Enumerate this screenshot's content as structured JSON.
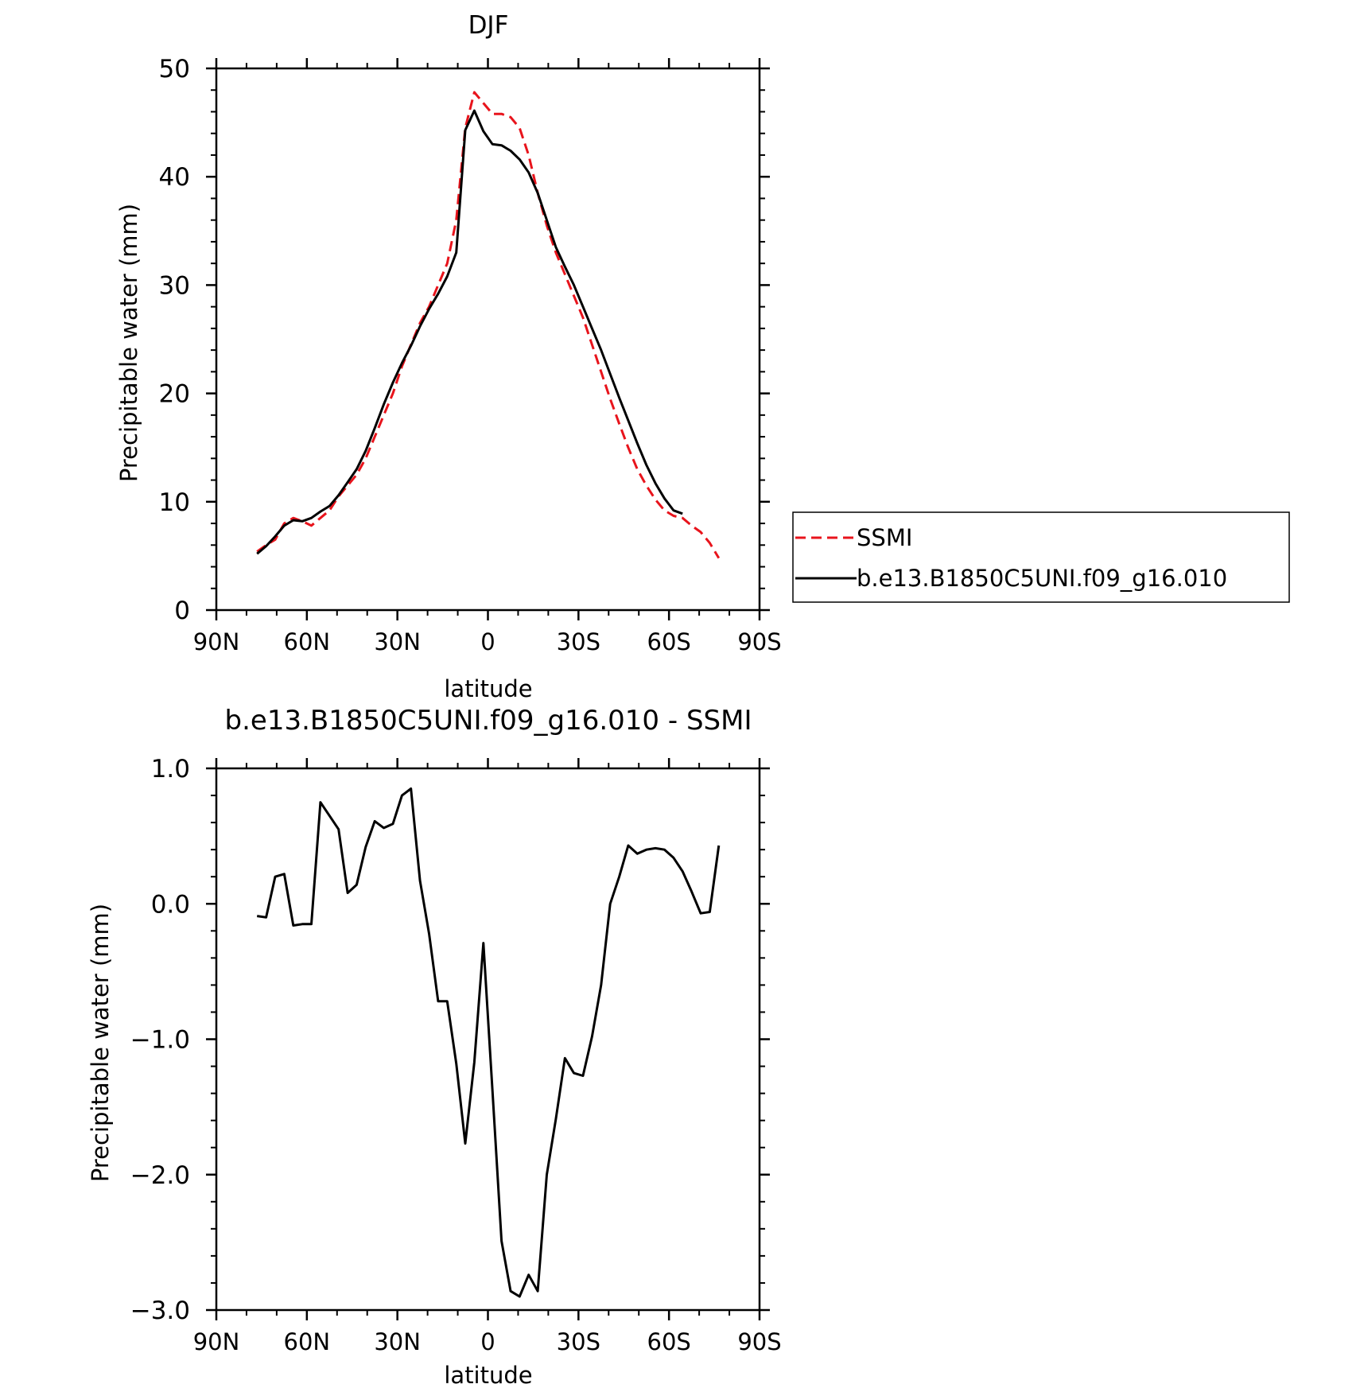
{
  "chart_data": [
    {
      "type": "line",
      "title": "DJF",
      "xlabel": "latitude",
      "ylabel": "Precipitable water (mm)",
      "xlim": [
        -90,
        90
      ],
      "ylim": [
        0,
        50
      ],
      "x_ticks": [
        -90,
        -60,
        -30,
        0,
        30,
        60,
        90
      ],
      "x_tick_labels": [
        "90N",
        "60N",
        "30N",
        "0",
        "30S",
        "60S",
        "90S"
      ],
      "y_ticks": [
        0,
        10,
        20,
        30,
        40,
        50
      ],
      "y_tick_labels": [
        "0",
        "10",
        "20",
        "30",
        "40",
        "50"
      ],
      "legend_position": "right",
      "series": [
        {
          "name": "SSMI",
          "color": "#e8141c",
          "dash": "dashed",
          "x": [
            -76.5,
            -73.5,
            -70.5,
            -67.5,
            -64.5,
            -61.5,
            -58.5,
            -55.5,
            -52.5,
            -49.5,
            -46.5,
            -43.5,
            -40.5,
            -37.5,
            -34.5,
            -31.5,
            -28.5,
            -25.5,
            -22.5,
            -19.5,
            -16.5,
            -13.5,
            -10.5,
            -7.5,
            -4.5,
            -1.5,
            1.5,
            4.5,
            7.5,
            10.5,
            13.5,
            16.5,
            19.5,
            22.5,
            25.5,
            28.5,
            31.5,
            34.5,
            37.5,
            40.5,
            43.5,
            46.5,
            49.5,
            52.5,
            55.5,
            58.5,
            61.5,
            64.5,
            67.5,
            70.5,
            73.5,
            76.5
          ],
          "values": [
            5.4,
            6.0,
            6.5,
            8.0,
            8.5,
            8.2,
            7.8,
            8.5,
            9.2,
            10.5,
            11.5,
            12.5,
            14.0,
            16.0,
            18.0,
            20.0,
            22.5,
            24.5,
            26.5,
            28.0,
            30.0,
            32.0,
            36.0,
            44.5,
            47.8,
            46.8,
            45.8,
            45.8,
            45.5,
            44.5,
            42.0,
            38.5,
            35.5,
            33.0,
            31.0,
            29.0,
            27.0,
            24.5,
            22.0,
            19.5,
            17.2,
            15.0,
            13.0,
            11.5,
            10.2,
            9.2,
            8.7,
            8.5,
            7.8,
            7.2,
            6.2,
            4.8
          ]
        },
        {
          "name": "b.e13.B1850C5UNI.f09_g16.010",
          "color": "#000000",
          "dash": "solid",
          "x": [
            -76.5,
            -73.5,
            -70.5,
            -67.5,
            -64.5,
            -61.5,
            -58.5,
            -55.5,
            -52.5,
            -49.5,
            -46.5,
            -43.5,
            -40.5,
            -37.5,
            -34.5,
            -31.5,
            -28.5,
            -25.5,
            -22.5,
            -19.5,
            -16.5,
            -13.5,
            -10.5,
            -7.5,
            -4.5,
            -1.5,
            1.5,
            4.5,
            7.5,
            10.5,
            13.5,
            16.5,
            19.5,
            22.5,
            25.5,
            28.5,
            31.5,
            34.5,
            37.5,
            40.5,
            43.5,
            46.5,
            49.5,
            52.5,
            55.5,
            58.5,
            61.5,
            64.5,
            67.5,
            70.5,
            73.5,
            76.5
          ],
          "values": [
            5.2,
            5.9,
            6.8,
            7.8,
            8.3,
            8.2,
            8.5,
            9.1,
            9.6,
            10.6,
            11.8,
            13.0,
            14.7,
            16.8,
            19.0,
            21.0,
            22.8,
            24.4,
            26.2,
            27.8,
            29.2,
            30.8,
            33.0,
            44.3,
            46.1,
            44.2,
            43.0,
            42.9,
            42.4,
            41.6,
            40.4,
            38.5,
            36.0,
            33.5,
            31.7,
            30.0,
            28.0,
            26.0,
            24.0,
            21.8,
            19.6,
            17.5,
            15.4,
            13.4,
            11.7,
            10.3,
            9.2,
            8.9,
            null,
            null,
            null,
            4.5
          ]
        }
      ]
    },
    {
      "type": "line",
      "title": "b.e13.B1850C5UNI.f09_g16.010 - SSMI",
      "xlabel": "latitude",
      "ylabel": "Precipitable water (mm)",
      "xlim": [
        -90,
        90
      ],
      "ylim": [
        -3.0,
        1.0
      ],
      "x_ticks": [
        -90,
        -60,
        -30,
        0,
        30,
        60,
        90
      ],
      "x_tick_labels": [
        "90N",
        "60N",
        "30N",
        "0",
        "30S",
        "60S",
        "90S"
      ],
      "y_ticks": [
        -3.0,
        -2.0,
        -1.0,
        0.0,
        1.0
      ],
      "y_tick_labels": [
        "-3.0",
        "-2.0",
        "-1.0",
        "0.0",
        "1.0"
      ],
      "series": [
        {
          "color": "#000000",
          "dash": "solid",
          "x": [
            -76.5,
            -73.5,
            -70.5,
            -67.5,
            -64.5,
            -61.5,
            -58.5,
            -55.5,
            -52.5,
            -49.5,
            -46.5,
            -43.5,
            -40.5,
            -37.5,
            -34.5,
            -31.5,
            -28.5,
            -25.5,
            -22.5,
            -19.5,
            -16.5,
            -13.5,
            -10.5,
            -7.5,
            -4.5,
            -1.5,
            1.5,
            4.5,
            7.5,
            10.5,
            13.5,
            16.5,
            19.5,
            22.5,
            25.5,
            28.5,
            31.5,
            34.5,
            37.5,
            40.5,
            43.5,
            46.5,
            49.5,
            52.5,
            55.5,
            58.5,
            61.5,
            64.5,
            67.5,
            70.5,
            73.5,
            76.5
          ],
          "values": [
            -0.09,
            -0.1,
            0.2,
            0.22,
            -0.16,
            -0.15,
            -0.15,
            0.75,
            0.65,
            0.55,
            0.08,
            0.14,
            0.42,
            0.61,
            0.56,
            0.59,
            0.8,
            0.85,
            0.17,
            -0.22,
            -0.72,
            -0.72,
            -1.18,
            -1.77,
            -1.17,
            -0.29,
            -1.38,
            -2.49,
            -2.86,
            -2.9,
            -2.74,
            -2.86,
            -2.0,
            -1.59,
            -1.14,
            -1.25,
            -1.27,
            -0.98,
            -0.6,
            0.0,
            0.2,
            0.43,
            0.37,
            0.4,
            0.41,
            0.4,
            0.34,
            0.24,
            0.09,
            -0.07,
            -0.06,
            0.43
          ]
        }
      ]
    }
  ]
}
